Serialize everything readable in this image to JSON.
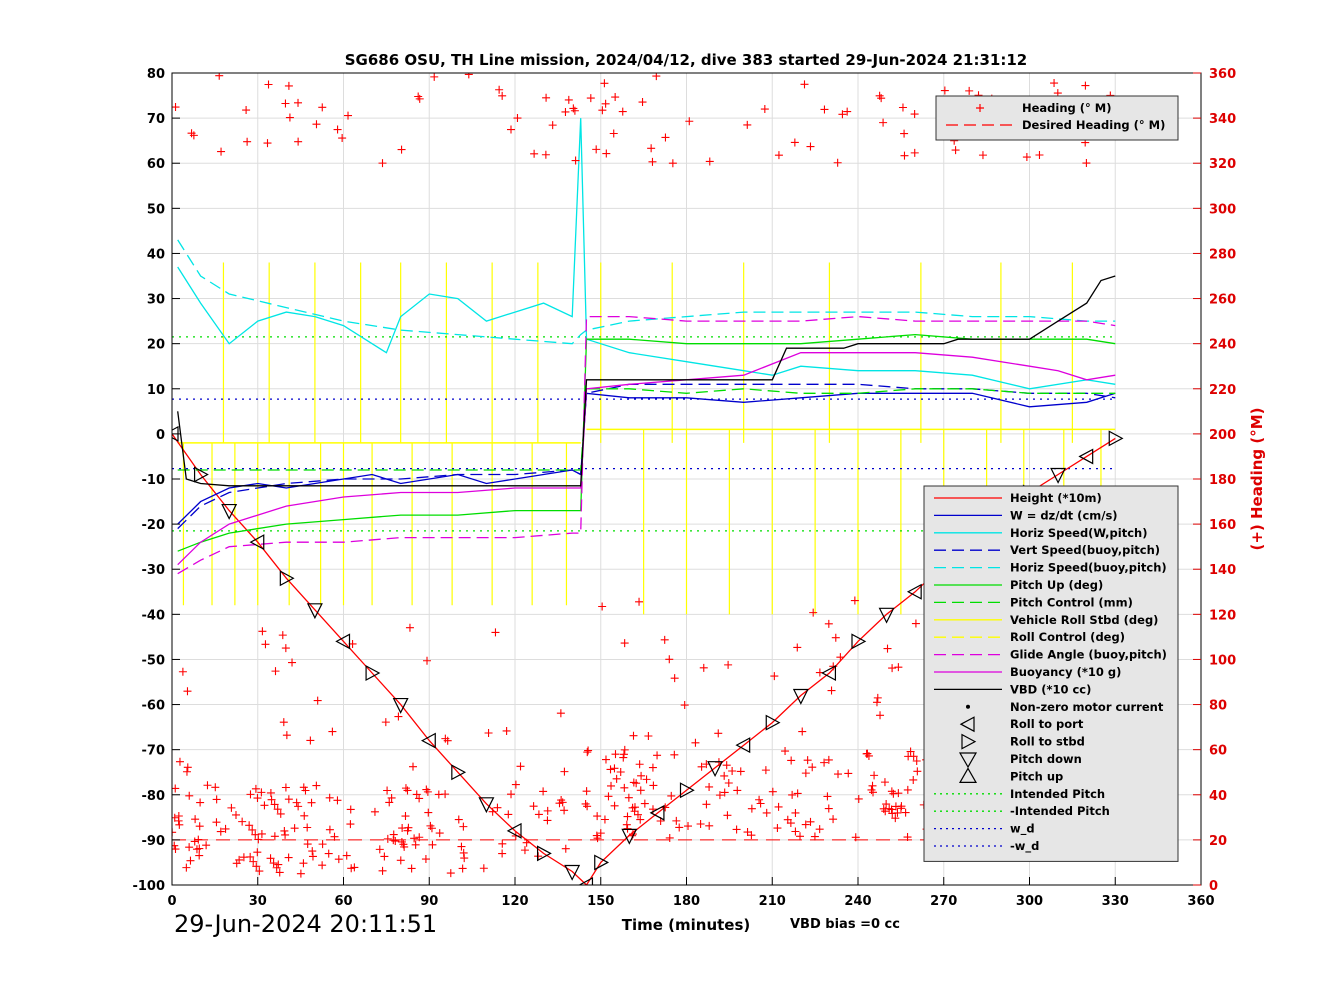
{
  "footer": {
    "timestamp": "29-Jun-2024 20:11:51",
    "vbd_bias": "VBD bias =0 cc"
  },
  "chart_data": {
    "type": "line",
    "title": "SG686 OSU, TH Line mission, 2024/04/12, dive 383 started 29-Jun-2024 21:31:12",
    "xlabel": "Time (minutes)",
    "ylabel": "",
    "y2label": "(+) Heading (°M)",
    "xlim": [
      0,
      360
    ],
    "ylim": [
      -100,
      80
    ],
    "y2lim": [
      0,
      360
    ],
    "xticks": [
      0,
      30,
      60,
      90,
      120,
      150,
      180,
      210,
      240,
      270,
      300,
      330,
      360
    ],
    "yticks": [
      -100,
      -90,
      -80,
      -70,
      -60,
      -50,
      -40,
      -30,
      -20,
      -10,
      0,
      10,
      20,
      30,
      40,
      50,
      60,
      70,
      80
    ],
    "y2ticks": [
      0,
      20,
      40,
      60,
      80,
      100,
      120,
      140,
      160,
      180,
      200,
      220,
      240,
      260,
      280,
      300,
      320,
      340,
      360
    ],
    "grid": true,
    "colors": {
      "red": "#ff0000",
      "blue": "#0000cc",
      "cyan": "#00e5e5",
      "green": "#00dd00",
      "yellow": "#ffff00",
      "magenta": "#dd00dd",
      "black": "#000000",
      "axis2": "#dd0000"
    },
    "legends": [
      {
        "placement": "top-right",
        "entries": [
          {
            "label": "Heading (° M)",
            "color": "#ff0000",
            "style": "plus"
          },
          {
            "label": "Desired Heading (° M)",
            "color": "#ff0000",
            "style": "dash"
          }
        ]
      },
      {
        "placement": "lower-right",
        "entries": [
          {
            "label": "Height (*10m)",
            "color": "#ff0000",
            "style": "solid"
          },
          {
            "label": "W = dz/dt (cm/s)",
            "color": "#0000cc",
            "style": "solid"
          },
          {
            "label": "Horiz Speed(W,pitch)",
            "color": "#00e5e5",
            "style": "solid"
          },
          {
            "label": "Vert Speed(buoy,pitch)",
            "color": "#0000cc",
            "style": "dash"
          },
          {
            "label": "Horiz Speed(buoy,pitch)",
            "color": "#00e5e5",
            "style": "dash"
          },
          {
            "label": "Pitch Up (deg)",
            "color": "#00dd00",
            "style": "solid"
          },
          {
            "label": "Pitch Control (mm)",
            "color": "#00dd00",
            "style": "dash"
          },
          {
            "label": "Vehicle Roll Stbd (deg)",
            "color": "#ffff00",
            "style": "solid"
          },
          {
            "label": "Roll Control (deg)",
            "color": "#ffff00",
            "style": "dash"
          },
          {
            "label": "Glide Angle (buoy,pitch)",
            "color": "#dd00dd",
            "style": "dash"
          },
          {
            "label": "Buoyancy (*10 g)",
            "color": "#dd00dd",
            "style": "solid"
          },
          {
            "label": "VBD (*10 cc)",
            "color": "#000000",
            "style": "solid"
          },
          {
            "label": "Non-zero motor current",
            "color": "#000000",
            "style": "dot"
          },
          {
            "label": "Roll to port",
            "color": "#000000",
            "style": "tri-left"
          },
          {
            "label": "Roll to stbd",
            "color": "#000000",
            "style": "tri-right"
          },
          {
            "label": "Pitch down",
            "color": "#000000",
            "style": "tri-down"
          },
          {
            "label": "Pitch up",
            "color": "#000000",
            "style": "tri-up"
          },
          {
            "label": "Intended Pitch",
            "color": "#00dd00",
            "style": "dotted"
          },
          {
            "label": "-Intended Pitch",
            "color": "#00dd00",
            "style": "dotted"
          },
          {
            "label": "w_d",
            "color": "#0000cc",
            "style": "dotted"
          },
          {
            "label": "-w_d",
            "color": "#0000cc",
            "style": "dotted"
          }
        ]
      }
    ],
    "series": [
      {
        "name": "Height (*10m)",
        "color": "#ff0000",
        "x": [
          0,
          10,
          20,
          30,
          40,
          50,
          60,
          70,
          80,
          90,
          100,
          110,
          120,
          130,
          140,
          145,
          150,
          160,
          170,
          180,
          190,
          200,
          210,
          220,
          230,
          240,
          250,
          260,
          270,
          280,
          290,
          300,
          310,
          320,
          330
        ],
        "y": [
          0,
          -9,
          -17,
          -24,
          -32,
          -39,
          -46,
          -53,
          -60,
          -68,
          -75,
          -82,
          -88,
          -93,
          -97,
          -100,
          -95,
          -89,
          -84,
          -79,
          -74,
          -69,
          -64,
          -58,
          -53,
          -46,
          -40,
          -35,
          -29,
          -24,
          -19,
          -13,
          -9,
          -5,
          -1
        ]
      },
      {
        "name": "W = dz/dt (cm/s)",
        "color": "#0000cc",
        "x": [
          2,
          10,
          20,
          30,
          40,
          50,
          60,
          70,
          80,
          90,
          100,
          110,
          120,
          130,
          140,
          143,
          145,
          160,
          180,
          200,
          220,
          240,
          260,
          280,
          300,
          320,
          330
        ],
        "y": [
          -20,
          -15,
          -12,
          -11,
          -12,
          -11,
          -10,
          -9,
          -11,
          -10,
          -9,
          -11,
          -10,
          -9,
          -8,
          -9,
          9,
          8,
          8,
          7,
          8,
          9,
          9,
          9,
          6,
          7,
          9
        ]
      },
      {
        "name": "Horiz Speed(W,pitch)",
        "color": "#00e5e5",
        "x": [
          2,
          10,
          20,
          30,
          40,
          50,
          60,
          70,
          75,
          80,
          90,
          100,
          110,
          120,
          130,
          140,
          143,
          145,
          160,
          180,
          200,
          210,
          220,
          240,
          260,
          280,
          300,
          320,
          330
        ],
        "y": [
          37,
          29,
          20,
          25,
          27,
          26,
          24,
          20,
          18,
          26,
          31,
          30,
          25,
          27,
          29,
          26,
          70,
          21,
          18,
          16,
          14,
          13,
          15,
          14,
          14,
          13,
          10,
          12,
          11
        ]
      },
      {
        "name": "Vert Speed(buoy,pitch)",
        "color": "#0000cc",
        "dash": true,
        "x": [
          2,
          10,
          20,
          40,
          60,
          80,
          100,
          120,
          140,
          143,
          145,
          160,
          180,
          200,
          220,
          240,
          260,
          280,
          300,
          320,
          330
        ],
        "y": [
          -21,
          -16,
          -13,
          -11,
          -10,
          -10,
          -9,
          -9,
          -8,
          -9,
          9,
          11,
          11,
          11,
          11,
          11,
          10,
          10,
          9,
          9,
          8
        ]
      },
      {
        "name": "Horiz Speed(buoy,pitch)",
        "color": "#00e5e5",
        "dash": true,
        "x": [
          2,
          10,
          20,
          40,
          60,
          80,
          100,
          120,
          140,
          143,
          145,
          160,
          180,
          200,
          220,
          240,
          260,
          280,
          300,
          320,
          330
        ],
        "y": [
          43,
          35,
          31,
          28,
          25,
          23,
          22,
          21,
          20,
          22,
          23,
          25,
          26,
          27,
          27,
          27,
          27,
          26,
          26,
          25,
          25
        ]
      },
      {
        "name": "Pitch Up (deg)",
        "color": "#00dd00",
        "x": [
          2,
          10,
          20,
          40,
          60,
          80,
          100,
          120,
          140,
          143,
          145,
          160,
          180,
          200,
          220,
          240,
          260,
          280,
          300,
          320,
          330
        ],
        "y": [
          -26,
          -24,
          -22,
          -20,
          -19,
          -18,
          -18,
          -17,
          -17,
          -17,
          21,
          21,
          20,
          20,
          20,
          21,
          22,
          21,
          21,
          21,
          20
        ]
      },
      {
        "name": "Pitch Control (mm)",
        "color": "#00dd00",
        "dash": true,
        "x": [
          2,
          20,
          40,
          60,
          80,
          100,
          120,
          140,
          143,
          145,
          160,
          180,
          200,
          220,
          240,
          260,
          280,
          300,
          320,
          330
        ],
        "y": [
          -8,
          -8,
          -8,
          -8,
          -8,
          -8,
          -8,
          -8,
          -8,
          10,
          10,
          9,
          10,
          9,
          9,
          10,
          10,
          9,
          9,
          9
        ]
      },
      {
        "name": "Glide Angle (buoy,pitch)",
        "color": "#dd00dd",
        "dash": true,
        "x": [
          2,
          10,
          20,
          40,
          60,
          80,
          100,
          120,
          140,
          143,
          145,
          160,
          180,
          200,
          220,
          240,
          260,
          280,
          300,
          320,
          330
        ],
        "y": [
          -31,
          -28,
          -25,
          -24,
          -24,
          -23,
          -23,
          -23,
          -22,
          -22,
          26,
          26,
          25,
          25,
          25,
          26,
          25,
          25,
          25,
          25,
          24
        ]
      },
      {
        "name": "Buoyancy (*10 g)",
        "color": "#dd00dd",
        "x": [
          2,
          10,
          20,
          30,
          40,
          60,
          80,
          100,
          120,
          140,
          143,
          145,
          160,
          180,
          200,
          220,
          240,
          260,
          280,
          300,
          310,
          320,
          330
        ],
        "y": [
          -29,
          -24,
          -20,
          -18,
          -16,
          -14,
          -13,
          -13,
          -12,
          -12,
          -12,
          10,
          11,
          12,
          13,
          18,
          18,
          18,
          17,
          15,
          14,
          12,
          13
        ]
      },
      {
        "name": "VBD (*10 cc)",
        "color": "#000000",
        "x": [
          2,
          5,
          10,
          20,
          40,
          60,
          80,
          100,
          120,
          140,
          143,
          145,
          160,
          180,
          200,
          210,
          215,
          235,
          240,
          270,
          275,
          300,
          310,
          320,
          325,
          330
        ],
        "y": [
          5,
          -10,
          -11,
          -11.5,
          -11.5,
          -11.5,
          -11.5,
          -11.5,
          -11.5,
          -11.5,
          -11.5,
          12,
          12,
          12,
          12,
          12,
          19,
          19,
          20,
          20,
          21,
          21,
          25,
          29,
          34,
          35
        ]
      }
    ],
    "reference_lines": [
      {
        "name": "Intended Pitch",
        "y": 21.5,
        "color": "#00dd00"
      },
      {
        "name": "-Intended Pitch",
        "y": -21.5,
        "color": "#00dd00"
      },
      {
        "name": "w_d",
        "y": 7.7,
        "color": "#0000cc"
      },
      {
        "name": "-w_d",
        "y": -7.7,
        "color": "#0000cc"
      }
    ],
    "heading": {
      "axis": "right",
      "desired": 20,
      "center_dive": 5,
      "center_climb": 20
    }
  }
}
